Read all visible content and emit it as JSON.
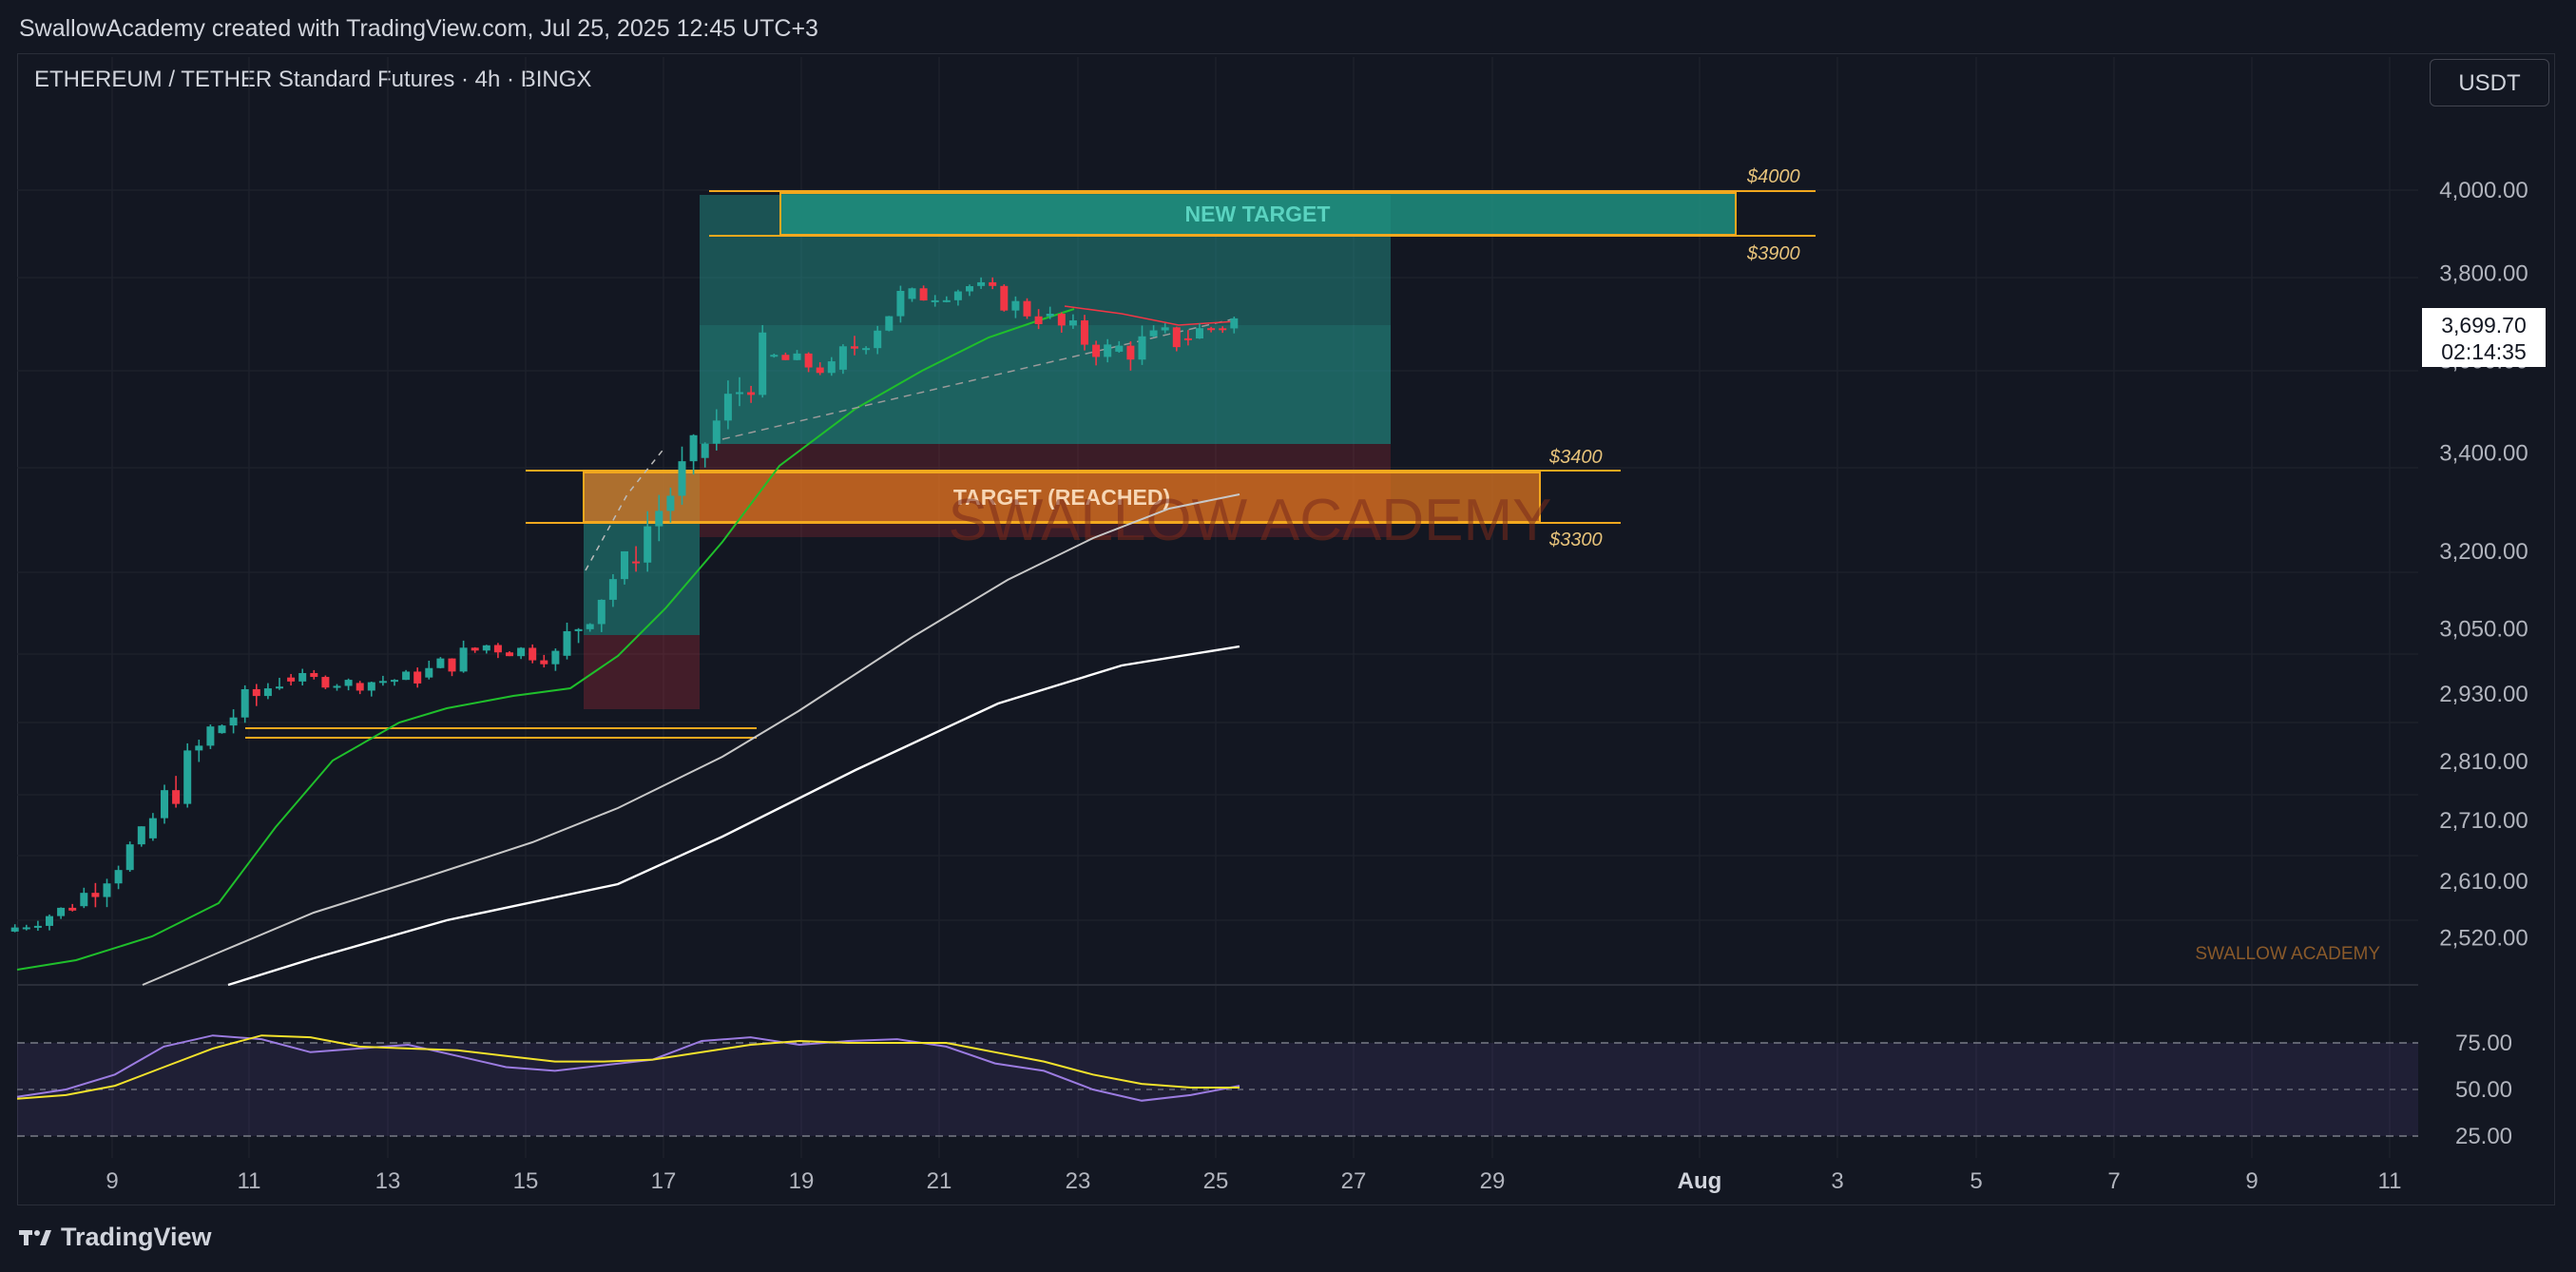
{
  "header": {
    "attribution": "SwallowAcademy created with TradingView.com, Jul 25, 2025 12:45 UTC+3"
  },
  "symbol": {
    "label": "ETHEREUM / TETHER Standard Futures · 4h · BINGX"
  },
  "currency_button": {
    "label": "USDT"
  },
  "footer": {
    "logo_text": "TradingView"
  },
  "price_badge": {
    "price": "3,699.70",
    "countdown": "02:14:35"
  },
  "zones": {
    "new_target": {
      "label": "NEW TARGET",
      "top_label": "$4000",
      "bottom_label": "$3900"
    },
    "reached_target": {
      "label": "TARGET (REACHED)",
      "top_label": "$3400",
      "bottom_label": "$3300"
    }
  },
  "watermark": "SWALLOW ACADEMY",
  "watermark_small": "SWALLOW ACADEMY",
  "colors": {
    "bg": "#131722",
    "up": "#26a69a",
    "down": "#f23645",
    "ema_fast": "#1fbf2b",
    "rsi": "#7e57c2",
    "rsi_ma": "#f2e22c",
    "zone_orange": "#e6791e",
    "zone_teal": "#1f8f7f"
  },
  "chart_data": [
    {
      "type": "candlestick",
      "title": "ETHEREUM / TETHER Standard Futures · 4h · BINGX",
      "x_axis": {
        "ticks": [
          "9",
          "11",
          "13",
          "15",
          "17",
          "19",
          "21",
          "23",
          "25",
          "27",
          "29",
          "Aug",
          "3",
          "5",
          "7",
          "9",
          "11"
        ]
      },
      "y_axis": {
        "scale": "log",
        "ticks": [
          "4,000.00",
          "3,800.00",
          "3,600.00",
          "3,400.00",
          "3,200.00",
          "3,050.00",
          "2,930.00",
          "2,810.00",
          "2,710.00",
          "2,610.00",
          "2,520.00"
        ]
      },
      "ohlc_daily_approx": [
        {
          "date": "Jul 8",
          "open": 2530,
          "high": 2590,
          "low": 2515,
          "close": 2570
        },
        {
          "date": "Jul 9",
          "open": 2570,
          "high": 2700,
          "low": 2560,
          "close": 2680
        },
        {
          "date": "Jul 10",
          "open": 2680,
          "high": 2890,
          "low": 2670,
          "close": 2860
        },
        {
          "date": "Jul 11",
          "open": 2860,
          "high": 3020,
          "low": 2840,
          "close": 2960
        },
        {
          "date": "Jul 12",
          "open": 2960,
          "high": 2990,
          "low": 2920,
          "close": 2950
        },
        {
          "date": "Jul 13",
          "open": 2950,
          "high": 3000,
          "low": 2910,
          "close": 2960
        },
        {
          "date": "Jul 14",
          "open": 2960,
          "high": 3070,
          "low": 2940,
          "close": 3020
        },
        {
          "date": "Jul 15",
          "open": 3020,
          "high": 3060,
          "low": 2950,
          "close": 3000
        },
        {
          "date": "Jul 16",
          "open": 3000,
          "high": 3200,
          "low": 2990,
          "close": 3180
        },
        {
          "date": "Jul 17",
          "open": 3180,
          "high": 3440,
          "low": 3160,
          "close": 3390
        },
        {
          "date": "Jul 18",
          "open": 3390,
          "high": 3680,
          "low": 3370,
          "close": 3610
        },
        {
          "date": "Jul 19",
          "open": 3610,
          "high": 3650,
          "low": 3520,
          "close": 3580
        },
        {
          "date": "Jul 20",
          "open": 3580,
          "high": 3780,
          "low": 3560,
          "close": 3740
        },
        {
          "date": "Jul 21",
          "open": 3740,
          "high": 3860,
          "low": 3720,
          "close": 3770
        },
        {
          "date": "Jul 22",
          "open": 3770,
          "high": 3790,
          "low": 3640,
          "close": 3700
        },
        {
          "date": "Jul 23",
          "open": 3700,
          "high": 3760,
          "low": 3570,
          "close": 3620
        },
        {
          "date": "Jul 24",
          "open": 3620,
          "high": 3760,
          "low": 3540,
          "close": 3650
        },
        {
          "date": "Jul 25",
          "open": 3650,
          "high": 3740,
          "low": 3580,
          "close": 3699.7
        }
      ]
    },
    {
      "type": "line",
      "title": "RSI",
      "y_axis": {
        "ticks": [
          "75.00",
          "50.00",
          "25.00"
        ],
        "ylim": [
          20,
          85
        ]
      },
      "series": [
        {
          "values": [
            46,
            50,
            58,
            73,
            79,
            77,
            70,
            72,
            74,
            68,
            62,
            60,
            63,
            66,
            76,
            78,
            74,
            76,
            77,
            73,
            64,
            60,
            50,
            44,
            47,
            52
          ]
        },
        {
          "values": [
            45,
            47,
            52,
            62,
            72,
            79,
            78,
            73,
            72,
            71,
            68,
            65,
            65,
            66,
            70,
            74,
            76,
            75,
            75,
            75,
            70,
            65,
            58,
            53,
            51,
            51
          ]
        }
      ]
    }
  ]
}
